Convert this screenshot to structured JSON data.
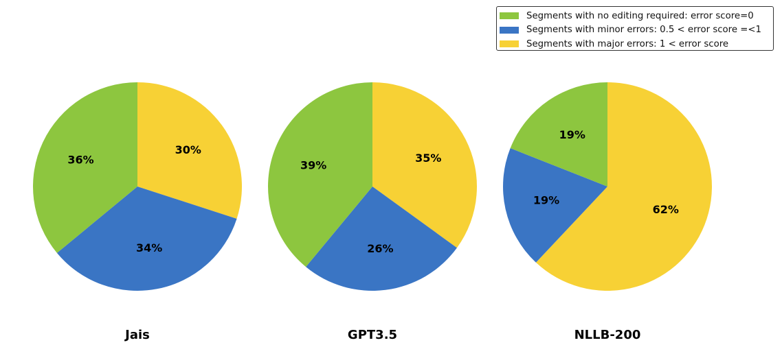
{
  "chart_data": [
    {
      "type": "pie",
      "title": "Jais",
      "categories": [
        "Segments with major errors: 1 < error score",
        "Segments with minor errors: 0.5 < error score =<1",
        "Segments with no editing required: error score=0"
      ],
      "values": [
        30,
        34,
        36
      ],
      "labels": [
        "30%",
        "34%",
        "36%"
      ],
      "colors": [
        "#F7D135",
        "#3A75C4",
        "#8DC63F"
      ]
    },
    {
      "type": "pie",
      "title": "GPT3.5",
      "categories": [
        "Segments with major errors: 1 < error score",
        "Segments with minor errors: 0.5 < error score =<1",
        "Segments with no editing required: error score=0"
      ],
      "values": [
        35,
        26,
        39
      ],
      "labels": [
        "35%",
        "26%",
        "39%"
      ],
      "colors": [
        "#F7D135",
        "#3A75C4",
        "#8DC63F"
      ]
    },
    {
      "type": "pie",
      "title": "NLLB-200",
      "categories": [
        "Segments with major errors: 1 < error score",
        "Segments with minor errors: 0.5 < error score =<1",
        "Segments with no editing required: error score=0"
      ],
      "values": [
        62,
        19,
        19
      ],
      "labels": [
        "62%",
        "19%",
        "19%"
      ],
      "colors": [
        "#F7D135",
        "#3A75C4",
        "#8DC63F"
      ]
    }
  ],
  "legend": {
    "placement": "top-right",
    "items": [
      {
        "label": "Segments with no editing required: error score=0",
        "color": "#8DC63F"
      },
      {
        "label": "Segments with minor errors: 0.5 < error score =<1",
        "color": "#3A75C4"
      },
      {
        "label": "Segments with major errors: 1 < error score",
        "color": "#F7D135"
      }
    ]
  }
}
